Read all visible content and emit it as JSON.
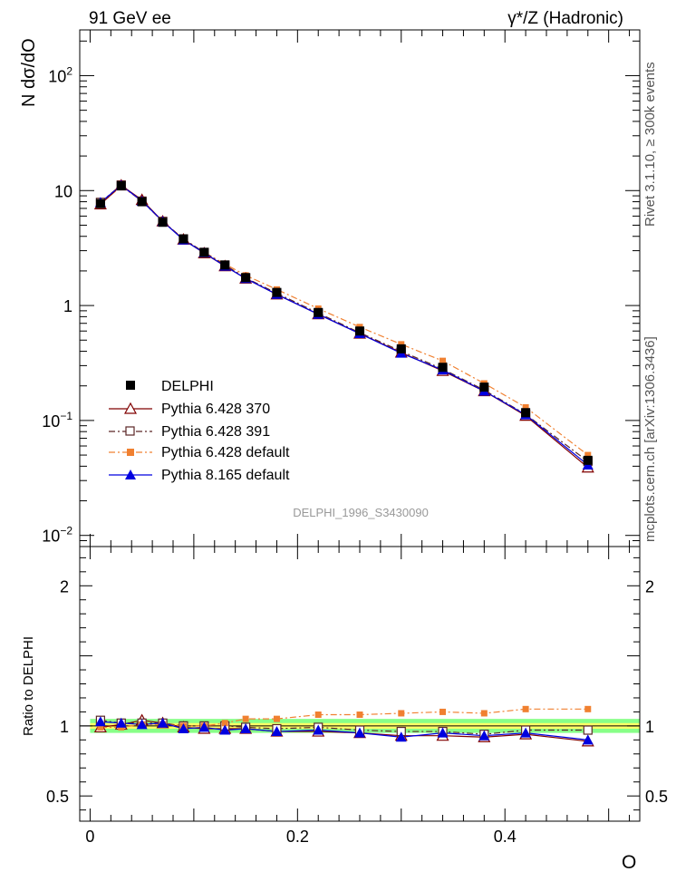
{
  "header": {
    "left_title": "91 GeV ee",
    "right_title": "γ*/Z (Hadronic)"
  },
  "side_labels": {
    "rivet": "Rivet 3.1.10, ≥ 300k events",
    "mcplots": "mcplots.cern.ch [arXiv:1306.3436]"
  },
  "watermark": "DELPHI_1996_S3430090",
  "xlabel": "O",
  "colors": {
    "delphi": "#000000",
    "p370": "#800000",
    "p391": "#5a2626",
    "p6def": "#f08030",
    "p8def": "#0000e0",
    "band_inner": "#ffff66",
    "band_outer": "#88ff88"
  },
  "chart_data": [
    {
      "type": "line",
      "panel": "main",
      "ylabel": "N dσ/dO",
      "yscale": "log",
      "xlim": [
        -0.01,
        0.53
      ],
      "ylim": [
        0.008,
        250
      ],
      "x_ticks": [
        0,
        0.2,
        0.4
      ],
      "y_ticks": [
        {
          "value": 100,
          "base": "10",
          "exp": "2"
        },
        {
          "value": 10,
          "base": "10",
          "exp": ""
        },
        {
          "value": 1,
          "base": "1",
          "exp": ""
        },
        {
          "value": 0.1,
          "base": "10",
          "exp": "−1"
        },
        {
          "value": 0.01,
          "base": "10",
          "exp": "−2"
        }
      ],
      "x": [
        0.01,
        0.03,
        0.05,
        0.07,
        0.09,
        0.11,
        0.13,
        0.15,
        0.18,
        0.22,
        0.26,
        0.3,
        0.34,
        0.38,
        0.42,
        0.48
      ],
      "series": [
        {
          "name": "DELPHI",
          "style": "data",
          "marker": "square-filled",
          "values": [
            7.7,
            11.0,
            8.0,
            5.3,
            3.8,
            2.9,
            2.25,
            1.75,
            1.3,
            0.87,
            0.6,
            0.42,
            0.29,
            0.195,
            0.117,
            0.045
          ]
        },
        {
          "name": "Pythia 6.428 370",
          "style": "solid",
          "marker": "triangle-open",
          "values": [
            7.6,
            11.1,
            8.3,
            5.4,
            3.75,
            2.85,
            2.2,
            1.72,
            1.25,
            0.84,
            0.57,
            0.39,
            0.27,
            0.18,
            0.11,
            0.039
          ]
        },
        {
          "name": "Pythia 6.428 391",
          "style": "dashdot",
          "marker": "square-open",
          "values": [
            7.9,
            11.2,
            8.1,
            5.4,
            3.8,
            2.9,
            2.25,
            1.74,
            1.28,
            0.86,
            0.58,
            0.4,
            0.28,
            0.184,
            0.113,
            0.044
          ]
        },
        {
          "name": "Pythia 6.428 default",
          "style": "dashdot",
          "marker": "square-filled",
          "values": [
            7.65,
            10.9,
            8.1,
            5.35,
            3.8,
            2.9,
            2.3,
            1.83,
            1.38,
            0.94,
            0.65,
            0.46,
            0.33,
            0.21,
            0.13,
            0.05
          ]
        },
        {
          "name": "Pythia 8.165 default",
          "style": "solid",
          "marker": "triangle-filled",
          "values": [
            7.9,
            11.1,
            8.1,
            5.4,
            3.72,
            2.88,
            2.2,
            1.72,
            1.25,
            0.84,
            0.57,
            0.385,
            0.275,
            0.18,
            0.112,
            0.041
          ]
        }
      ]
    },
    {
      "type": "line",
      "panel": "ratio",
      "ylabel": "Ratio to DELPHI",
      "xlim": [
        -0.01,
        0.53
      ],
      "ylim": [
        0.32,
        2.28
      ],
      "x_ticks": [
        0,
        0.2,
        0.4
      ],
      "y_ticks": [
        0.5,
        1,
        2
      ],
      "y_tick_labels": [
        "0.5",
        "1",
        "2"
      ],
      "x_tick_labels": [
        "0",
        "0.2",
        "0.4"
      ],
      "band_inner": [
        0.98,
        1.02
      ],
      "band_outer": [
        0.95,
        1.05
      ],
      "x": [
        0.01,
        0.03,
        0.05,
        0.07,
        0.09,
        0.11,
        0.13,
        0.15,
        0.18,
        0.22,
        0.26,
        0.3,
        0.34,
        0.38,
        0.42,
        0.48
      ],
      "series": [
        {
          "name": "Pythia 6.428 370",
          "values": [
            0.99,
            1.01,
            1.04,
            1.02,
            0.99,
            0.98,
            0.98,
            0.98,
            0.96,
            0.96,
            0.95,
            0.93,
            0.93,
            0.92,
            0.94,
            0.89
          ]
        },
        {
          "name": "Pythia 6.428 391",
          "values": [
            1.04,
            1.02,
            1.02,
            1.02,
            1.0,
            1.0,
            1.0,
            0.99,
            0.98,
            0.99,
            0.97,
            0.96,
            0.96,
            0.94,
            0.97,
            0.97
          ]
        },
        {
          "name": "Pythia 6.428 default",
          "values": [
            0.99,
            0.99,
            1.01,
            1.01,
            1.0,
            1.0,
            1.02,
            1.05,
            1.05,
            1.08,
            1.08,
            1.09,
            1.1,
            1.09,
            1.12,
            1.12
          ]
        },
        {
          "name": "Pythia 8.165 default",
          "values": [
            1.03,
            1.02,
            1.01,
            1.02,
            0.98,
            0.99,
            0.97,
            0.98,
            0.96,
            0.97,
            0.95,
            0.92,
            0.95,
            0.93,
            0.95,
            0.9
          ]
        }
      ]
    }
  ]
}
